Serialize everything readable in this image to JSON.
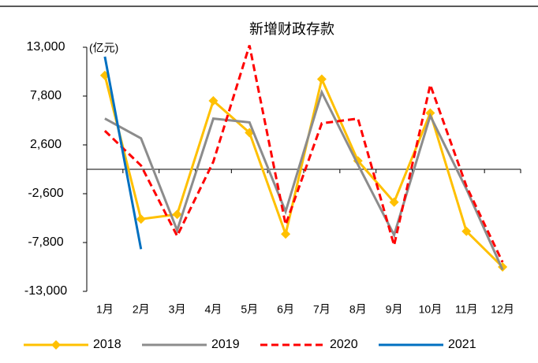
{
  "chart_data": {
    "type": "line",
    "title": "新增财政存款",
    "y_unit": "(亿元)",
    "categories": [
      "1月",
      "2月",
      "3月",
      "4月",
      "5月",
      "6月",
      "7月",
      "8月",
      "9月",
      "10月",
      "11月",
      "12月"
    ],
    "series": [
      {
        "name": "2018",
        "color": "#ffc000",
        "marker": "diamond",
        "values": [
          10000,
          -5300,
          -4800,
          7300,
          3900,
          -6900,
          9600,
          900,
          -3500,
          6000,
          -6600,
          -10400
        ]
      },
      {
        "name": "2019",
        "color": "#8c8c8c",
        "values": [
          5400,
          3300,
          -6500,
          5400,
          5000,
          -4500,
          8200,
          500,
          -7000,
          5700,
          -2100,
          -10700
        ]
      },
      {
        "name": "2020",
        "color": "#ff0000",
        "dash": true,
        "values": [
          4100,
          400,
          -7100,
          800,
          13200,
          -5900,
          4900,
          5400,
          -8100,
          9000,
          -1800,
          -9900
        ]
      },
      {
        "name": "2021",
        "color": "#0070c0",
        "values": [
          12000,
          -8500,
          null,
          null,
          null,
          null,
          null,
          null,
          null,
          null,
          null,
          null
        ]
      }
    ],
    "ylim": [
      -13000,
      13000
    ],
    "yticks": [
      {
        "value": -13000,
        "label": "-13,000"
      },
      {
        "value": -7800,
        "label": "-7,800"
      },
      {
        "value": -2600,
        "label": "-2,600"
      },
      {
        "value": 2600,
        "label": "2,600"
      },
      {
        "value": 7800,
        "label": "7,800"
      },
      {
        "value": 13000,
        "label": "13,000"
      }
    ],
    "legend": "bottom"
  }
}
